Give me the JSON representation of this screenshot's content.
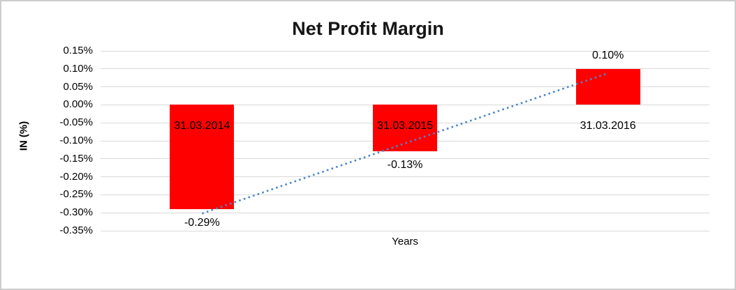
{
  "chart_data": {
    "type": "bar",
    "title": "Net Profit Margin",
    "xlabel": "Years",
    "ylabel": "IN (%)",
    "categories": [
      "31.03.2014",
      "31.03.2015",
      "31.03.2016"
    ],
    "series": [
      {
        "name": "Net Profit Margin",
        "values": [
          -0.29,
          -0.13,
          0.1
        ],
        "value_labels": [
          "-0.29%",
          "-0.13%",
          "0.10%"
        ],
        "color": "#ff0000"
      }
    ],
    "y_ticks": [
      {
        "value": 0.15,
        "label": "0.15%"
      },
      {
        "value": 0.1,
        "label": "0.10%"
      },
      {
        "value": 0.05,
        "label": "0.05%"
      },
      {
        "value": 0.0,
        "label": "0.00%"
      },
      {
        "value": -0.05,
        "label": "-0.05%"
      },
      {
        "value": -0.1,
        "label": "-0.10%"
      },
      {
        "value": -0.15,
        "label": "-0.15%"
      },
      {
        "value": -0.2,
        "label": "-0.20%"
      },
      {
        "value": -0.25,
        "label": "-0.25%"
      },
      {
        "value": -0.3,
        "label": "-0.30%"
      },
      {
        "value": -0.35,
        "label": "-0.35%"
      }
    ],
    "ylim": [
      -0.35,
      0.15
    ],
    "grid": true,
    "gridline_color": "#d9d9d9",
    "legend": "none",
    "trendline": {
      "type": "linear",
      "style": "dotted",
      "color": "#4a86c8",
      "start_value": -0.302,
      "end_value": 0.088
    }
  }
}
